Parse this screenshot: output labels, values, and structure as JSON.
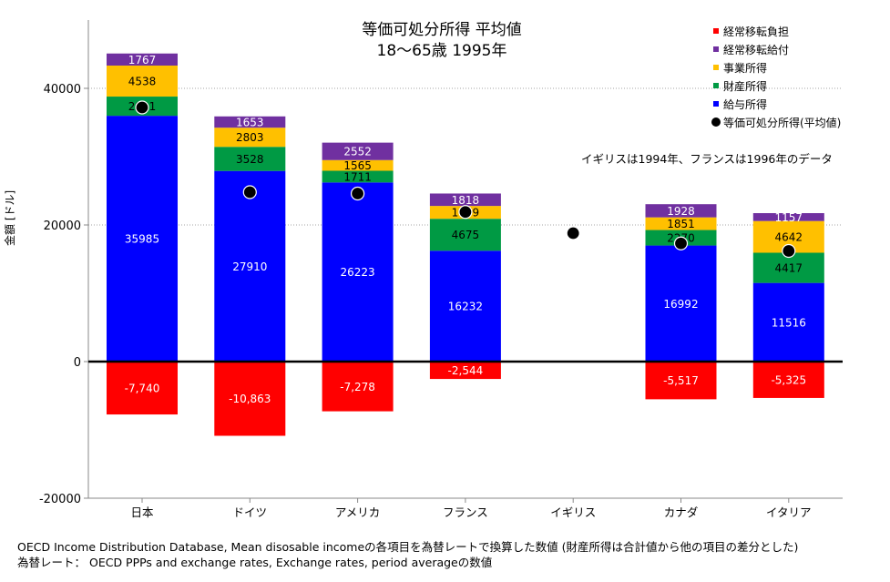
{
  "chart_data": {
    "type": "stacked-bar",
    "title_line1": "等価可処分所得 平均値",
    "title_line2": "18〜65歳 1995年",
    "ylabel": "金額 [ドル]",
    "ylim": [
      -20000,
      50000
    ],
    "yticks": [
      -20000,
      0,
      20000,
      40000
    ],
    "categories": [
      "日本",
      "ドイツ",
      "アメリカ",
      "フランス",
      "イギリス",
      "カナダ",
      "イタリア"
    ],
    "series": [
      {
        "name": "給与所得",
        "color": "#0000ff",
        "values": [
          35985,
          27910,
          26223,
          16232,
          null,
          16992,
          11516
        ],
        "labels": [
          "35985",
          "27910",
          "26223",
          "16232",
          "",
          "16992",
          "11516"
        ]
      },
      {
        "name": "財産所得",
        "color": "#009a44",
        "values": [
          2811,
          3528,
          1711,
          4675,
          null,
          2270,
          4417
        ],
        "labels": [
          "2811",
          "3528",
          "1711",
          "4675",
          "",
          "2270",
          "4417"
        ]
      },
      {
        "name": "事業所得",
        "color": "#ffc000",
        "values": [
          4538,
          2803,
          1565,
          1879,
          null,
          1851,
          4642
        ],
        "labels": [
          "4538",
          "2803",
          "1565",
          "1879",
          "",
          "1851",
          "4642"
        ]
      },
      {
        "name": "経常移転給付",
        "color": "#7030a0",
        "values": [
          1767,
          1653,
          2552,
          1818,
          null,
          1928,
          1157
        ],
        "labels": [
          "1767",
          "1653",
          "2552",
          "1818",
          "",
          "1928",
          "1157"
        ]
      },
      {
        "name": "経常移転負担",
        "color": "#ff0000",
        "values": [
          -7740,
          -10863,
          -7278,
          -2544,
          null,
          -5517,
          -5325
        ],
        "labels": [
          "-7,740",
          "-10,863",
          "-7,278",
          "-2,544",
          "",
          "-5,517",
          "-5,325"
        ]
      }
    ],
    "disposable_income": {
      "name": "等価可処分所得(平均値)",
      "values": [
        37200,
        24800,
        24600,
        21900,
        18800,
        17300,
        16200
      ]
    },
    "legend": [
      {
        "name": "経常移転負担",
        "color": "#ff0000",
        "marker": "square"
      },
      {
        "name": "経常移転給付",
        "color": "#7030a0",
        "marker": "square"
      },
      {
        "name": "事業所得",
        "color": "#ffc000",
        "marker": "square"
      },
      {
        "name": "財産所得",
        "color": "#009a44",
        "marker": "square"
      },
      {
        "name": "給与所得",
        "color": "#0000ff",
        "marker": "square"
      },
      {
        "name": "等価可処分所得(平均値)",
        "color": "#000000",
        "marker": "circle"
      }
    ],
    "annotation": "イギリスは1994年、フランスは1996年のデータ",
    "source_line1": "OECD Income Distribution Database, Mean disosable incomeの各項目を為替レートで換算した数値 (財産所得は合計値から他の項目の差分とした)",
    "source_line2": "為替レート： OECD PPPs and exchange rates, Exchange rates, period averageの数値"
  }
}
